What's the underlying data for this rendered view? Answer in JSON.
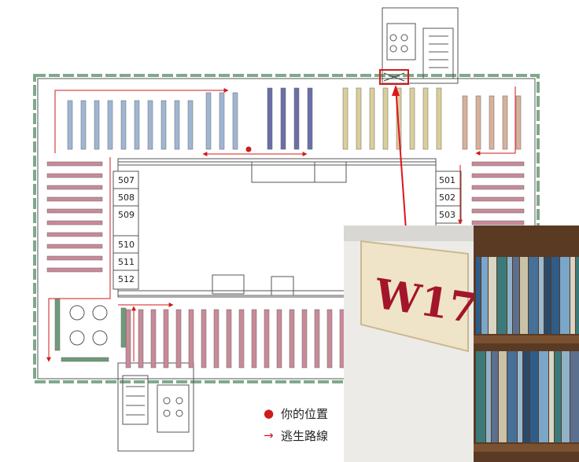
{
  "rooms_left": [
    "507",
    "508",
    "509",
    "510",
    "511",
    "512"
  ],
  "rooms_right": [
    "501",
    "502",
    "503"
  ],
  "legend": {
    "you_are_here": "你的位置",
    "escape_route": "逃生路線"
  },
  "photo": {
    "sign_text": "W17",
    "sign_color": "#a3152a"
  },
  "colors": {
    "route": "#d11a1a",
    "wall": "#7fa98a",
    "shelf_blue": "#9fb6d3",
    "shelf_navy": "#6b6fa8",
    "shelf_yellow": "#d9cf9a",
    "shelf_tan": "#d9b09a",
    "shelf_pink": "#c98a98",
    "shelf_green": "#6e9a78"
  }
}
